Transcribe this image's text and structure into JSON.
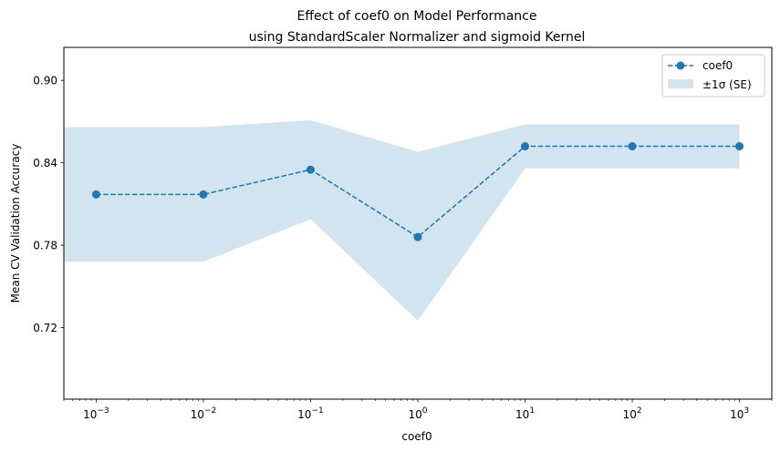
{
  "chart_data": {
    "type": "line",
    "title": "Effect of coef0 on Model Performance",
    "subtitle": "using StandardScaler Normalizer and sigmoid Kernel",
    "xlabel": "coef0",
    "ylabel": "Mean CV Validation Accuracy",
    "x_scale": "log",
    "xlim": [
      0.0005,
      2000
    ],
    "ylim": [
      0.668,
      0.924
    ],
    "x_ticks": [
      0.001,
      0.01,
      0.1,
      1,
      10,
      100,
      1000
    ],
    "x_tick_exponents": [
      "−3",
      "−2",
      "−1",
      "0",
      "1",
      "2",
      "3"
    ],
    "y_ticks": [
      0.72,
      0.78,
      0.84,
      0.9
    ],
    "y_tick_labels": [
      "0.72",
      "0.78",
      "0.84",
      "0.90"
    ],
    "grid": false,
    "legend_position": "top-right",
    "series": [
      {
        "name": "coef0",
        "style": "dashed line with circle markers",
        "color": "#1f77b4",
        "x": [
          0.001,
          0.01,
          0.1,
          1,
          10,
          100,
          1000
        ],
        "y": [
          0.817,
          0.817,
          0.835,
          0.786,
          0.852,
          0.852,
          0.852
        ]
      }
    ],
    "band": {
      "name": "±1σ (SE)",
      "color": "#1f77b4",
      "opacity": 0.2,
      "x": [
        0.0005,
        0.001,
        0.01,
        0.1,
        1,
        10,
        100,
        1000
      ],
      "upper": [
        0.866,
        0.866,
        0.866,
        0.871,
        0.848,
        0.868,
        0.868,
        0.868
      ],
      "lower": [
        0.768,
        0.768,
        0.768,
        0.799,
        0.725,
        0.836,
        0.836,
        0.836
      ]
    }
  }
}
